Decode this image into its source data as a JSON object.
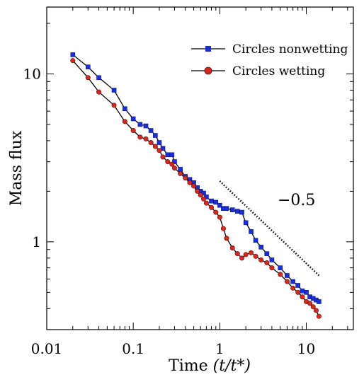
{
  "chart_data": {
    "type": "line",
    "title": "",
    "xlabel": "Time",
    "xlabel_math": "(t/t*)",
    "ylabel": "Mass flux",
    "x_scale": "log",
    "y_scale": "log",
    "xlim": [
      0.01,
      35
    ],
    "ylim": [
      0.3,
      25
    ],
    "x_ticks": [
      {
        "value": 0.01,
        "label": "0.01"
      },
      {
        "value": 0.1,
        "label": "0.1"
      },
      {
        "value": 1,
        "label": "1"
      },
      {
        "value": 10,
        "label": "10"
      }
    ],
    "y_ticks": [
      {
        "value": 1,
        "label": "1"
      },
      {
        "value": 10,
        "label": "10"
      }
    ],
    "grid": false,
    "legend_position": "top-right",
    "series": [
      {
        "name": "Circles nonwetting",
        "color": "#1a2fd6",
        "marker": "square",
        "x": [
          0.02,
          0.03,
          0.04,
          0.06,
          0.08,
          0.1,
          0.12,
          0.14,
          0.16,
          0.18,
          0.2,
          0.22,
          0.25,
          0.28,
          0.3,
          0.35,
          0.4,
          0.45,
          0.5,
          0.55,
          0.6,
          0.65,
          0.7,
          0.8,
          0.9,
          1.0,
          1.1,
          1.2,
          1.4,
          1.6,
          1.8,
          2.0,
          2.3,
          2.6,
          3.0,
          3.5,
          4.0,
          5.0,
          6.0,
          7.0,
          8.0,
          9.0,
          10.0,
          11.0,
          12.0,
          13.0,
          14.0
        ],
        "y": [
          13.0,
          11.0,
          9.5,
          8.0,
          6.2,
          5.4,
          5.0,
          4.9,
          4.6,
          4.3,
          3.9,
          3.6,
          3.3,
          3.3,
          3.0,
          2.7,
          2.45,
          2.35,
          2.25,
          2.1,
          2.0,
          1.95,
          1.85,
          1.75,
          1.72,
          1.65,
          1.58,
          1.58,
          1.55,
          1.52,
          1.5,
          1.3,
          1.15,
          1.02,
          0.93,
          0.85,
          0.78,
          0.7,
          0.63,
          0.58,
          0.55,
          0.51,
          0.5,
          0.47,
          0.46,
          0.45,
          0.44
        ]
      },
      {
        "name": "Circles wetting",
        "color": "#d42a1f",
        "marker": "circle",
        "x": [
          0.02,
          0.03,
          0.04,
          0.06,
          0.08,
          0.1,
          0.12,
          0.14,
          0.16,
          0.18,
          0.2,
          0.22,
          0.25,
          0.28,
          0.3,
          0.35,
          0.4,
          0.45,
          0.5,
          0.55,
          0.6,
          0.65,
          0.7,
          0.8,
          0.9,
          1.0,
          1.1,
          1.2,
          1.4,
          1.6,
          1.8,
          2.0,
          2.3,
          2.6,
          3.0,
          3.5,
          4.0,
          5.0,
          6.0,
          7.0,
          8.0,
          9.0,
          10.0,
          11.0,
          12.0,
          13.0,
          14.0
        ],
        "y": [
          12.0,
          9.5,
          7.8,
          6.5,
          5.2,
          4.6,
          4.2,
          4.1,
          3.9,
          3.7,
          3.5,
          3.2,
          3.0,
          2.9,
          2.75,
          2.55,
          2.4,
          2.25,
          2.15,
          2.0,
          1.9,
          1.8,
          1.7,
          1.6,
          1.5,
          1.4,
          1.2,
          1.05,
          0.92,
          0.85,
          0.8,
          0.84,
          0.86,
          0.82,
          0.78,
          0.75,
          0.7,
          0.64,
          0.58,
          0.53,
          0.5,
          0.47,
          0.44,
          0.43,
          0.41,
          0.39,
          0.36
        ]
      }
    ],
    "annotations": [
      {
        "type": "slope-line",
        "style": "dotted",
        "label": "−0.5",
        "x": [
          1.0,
          14.5
        ],
        "y": [
          2.3,
          0.62
        ]
      }
    ]
  }
}
